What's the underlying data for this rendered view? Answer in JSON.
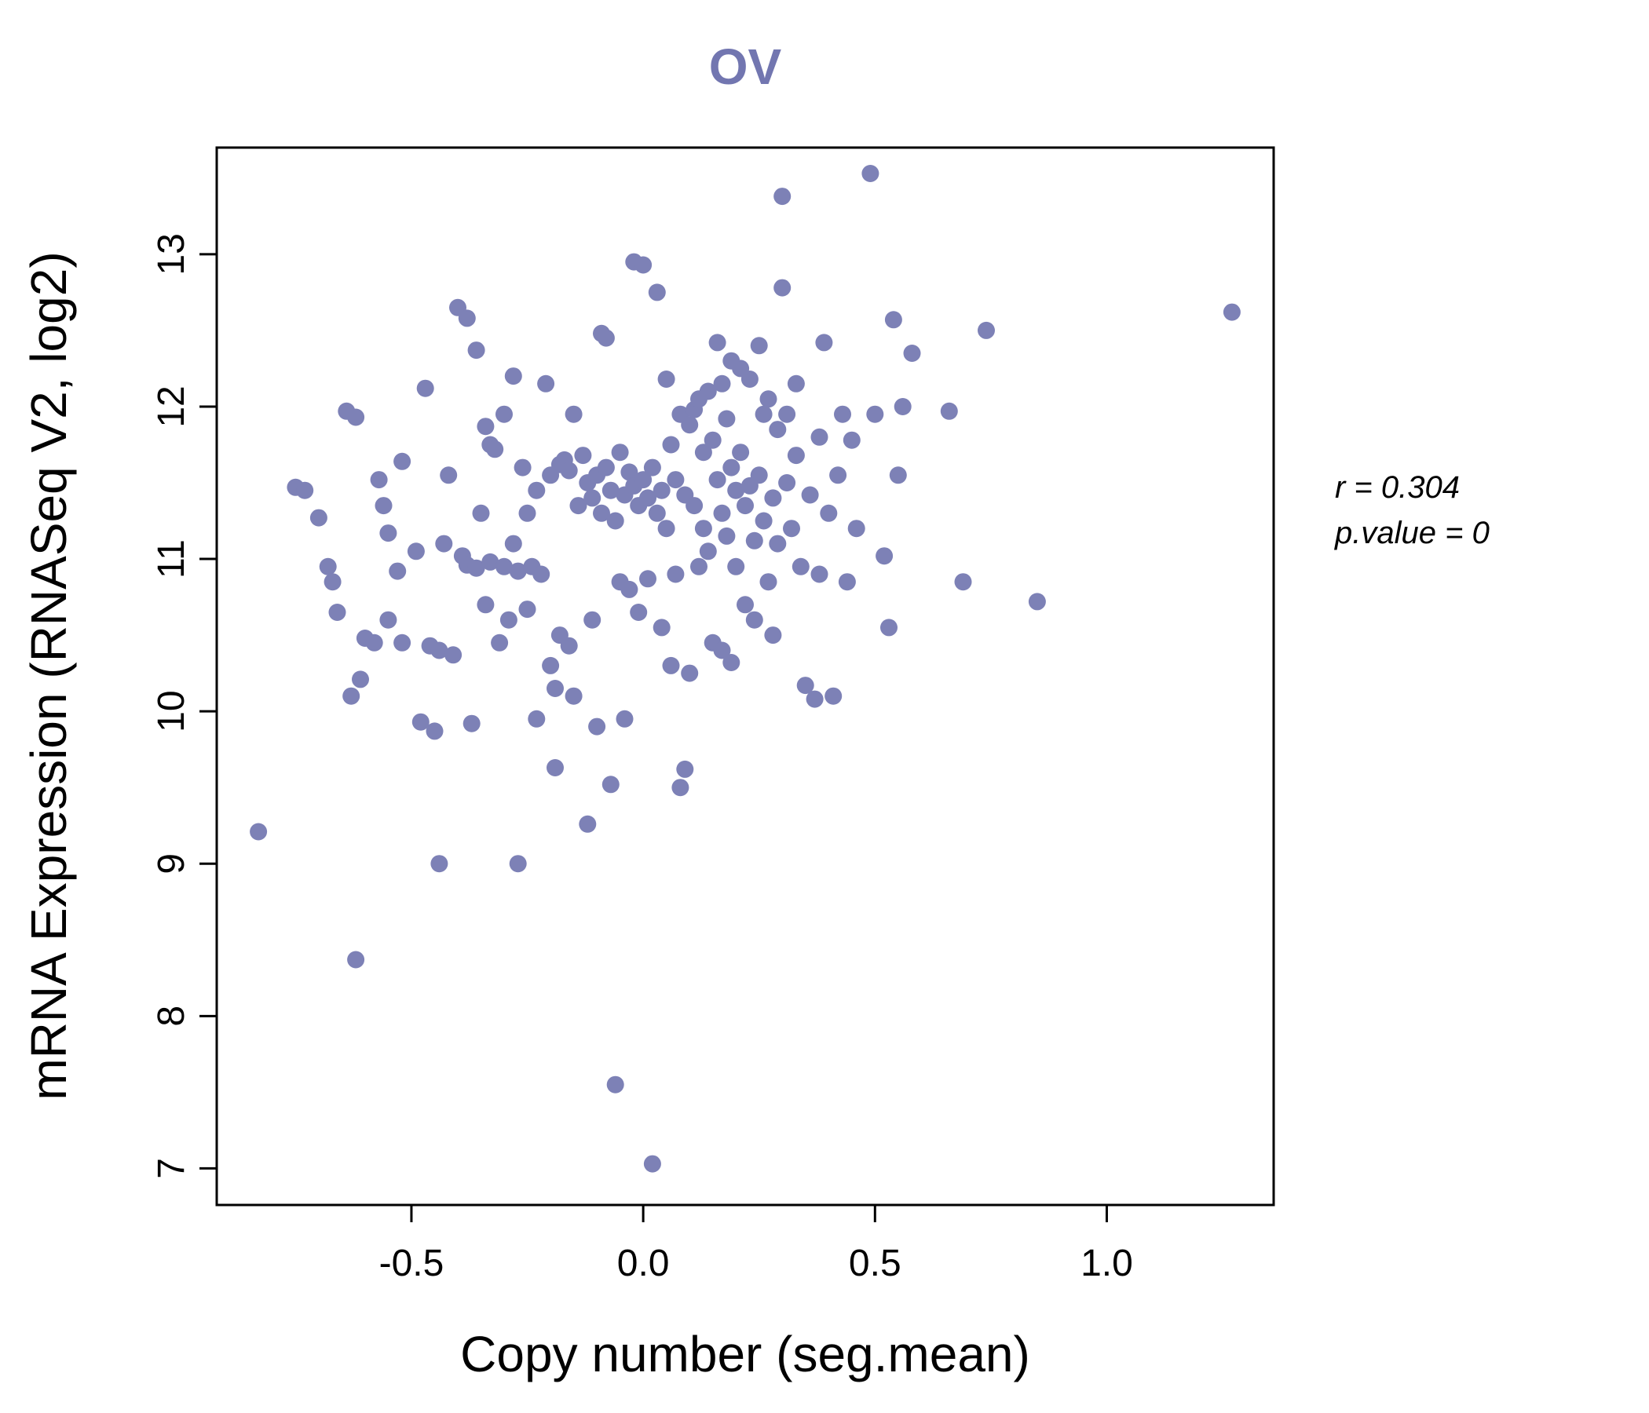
{
  "title": "OV",
  "annotation": {
    "r_line": "r = 0.304",
    "p_line": "p.value = 0"
  },
  "chart_data": {
    "type": "scatter",
    "title": "OV",
    "xlabel": "Copy number (seg.mean)",
    "ylabel": "mRNA Expression (RNASeq V2, log2)",
    "xlim": [
      -0.92,
      1.36
    ],
    "ylim": [
      6.76,
      13.7
    ],
    "x_ticks": [
      -0.5,
      0,
      0.5,
      1
    ],
    "x_tick_labels": [
      "-0.5",
      "0.0",
      "0.5",
      "1.0"
    ],
    "y_ticks": [
      7,
      8,
      9,
      10,
      11,
      12,
      13
    ],
    "y_tick_labels": [
      "7",
      "8",
      "9",
      "10",
      "11",
      "12",
      "13"
    ],
    "grid": false,
    "legend_position": "none",
    "point_color": "#7d81b6",
    "title_color": "#7276b0",
    "correlation": {
      "r": 0.304,
      "p_value": 0
    },
    "points": [
      [
        -0.83,
        9.21
      ],
      [
        -0.75,
        11.47
      ],
      [
        -0.73,
        11.45
      ],
      [
        -0.7,
        11.27
      ],
      [
        -0.68,
        10.95
      ],
      [
        -0.67,
        10.85
      ],
      [
        -0.66,
        10.65
      ],
      [
        -0.64,
        11.97
      ],
      [
        -0.62,
        11.93
      ],
      [
        -0.62,
        8.37
      ],
      [
        -0.63,
        10.1
      ],
      [
        -0.61,
        10.21
      ],
      [
        -0.6,
        10.48
      ],
      [
        -0.58,
        10.45
      ],
      [
        -0.57,
        11.52
      ],
      [
        -0.56,
        11.35
      ],
      [
        -0.55,
        10.6
      ],
      [
        -0.55,
        11.17
      ],
      [
        -0.53,
        10.92
      ],
      [
        -0.52,
        11.64
      ],
      [
        -0.52,
        10.45
      ],
      [
        -0.49,
        11.05
      ],
      [
        -0.48,
        9.93
      ],
      [
        -0.47,
        12.12
      ],
      [
        -0.46,
        10.43
      ],
      [
        -0.45,
        9.87
      ],
      [
        -0.44,
        9.0
      ],
      [
        -0.44,
        10.4
      ],
      [
        -0.43,
        11.1
      ],
      [
        -0.42,
        11.55
      ],
      [
        -0.41,
        10.37
      ],
      [
        -0.4,
        12.65
      ],
      [
        -0.39,
        11.02
      ],
      [
        -0.38,
        12.58
      ],
      [
        -0.38,
        10.96
      ],
      [
        -0.37,
        9.92
      ],
      [
        -0.36,
        12.37
      ],
      [
        -0.36,
        10.94
      ],
      [
        -0.35,
        11.3
      ],
      [
        -0.34,
        11.87
      ],
      [
        -0.34,
        10.7
      ],
      [
        -0.33,
        11.75
      ],
      [
        -0.33,
        10.98
      ],
      [
        -0.32,
        11.72
      ],
      [
        -0.31,
        10.45
      ],
      [
        -0.3,
        11.95
      ],
      [
        -0.3,
        10.95
      ],
      [
        -0.29,
        10.6
      ],
      [
        -0.28,
        11.1
      ],
      [
        -0.28,
        12.2
      ],
      [
        -0.27,
        9.0
      ],
      [
        -0.27,
        10.92
      ],
      [
        -0.26,
        11.6
      ],
      [
        -0.25,
        10.67
      ],
      [
        -0.25,
        11.3
      ],
      [
        -0.24,
        10.95
      ],
      [
        -0.23,
        9.95
      ],
      [
        -0.23,
        11.45
      ],
      [
        -0.22,
        10.9
      ],
      [
        -0.21,
        12.15
      ],
      [
        -0.2,
        10.3
      ],
      [
        -0.2,
        11.55
      ],
      [
        -0.19,
        9.63
      ],
      [
        -0.19,
        10.15
      ],
      [
        -0.18,
        11.62
      ],
      [
        -0.18,
        10.5
      ],
      [
        -0.17,
        11.65
      ],
      [
        -0.16,
        10.43
      ],
      [
        -0.16,
        11.58
      ],
      [
        -0.15,
        11.95
      ],
      [
        -0.15,
        10.1
      ],
      [
        -0.14,
        11.35
      ],
      [
        -0.13,
        11.68
      ],
      [
        -0.12,
        9.26
      ],
      [
        -0.12,
        11.5
      ],
      [
        -0.11,
        10.6
      ],
      [
        -0.11,
        11.4
      ],
      [
        -0.1,
        9.9
      ],
      [
        -0.1,
        11.55
      ],
      [
        -0.09,
        11.3
      ],
      [
        -0.09,
        12.48
      ],
      [
        -0.08,
        12.45
      ],
      [
        -0.08,
        11.6
      ],
      [
        -0.07,
        9.52
      ],
      [
        -0.07,
        11.45
      ],
      [
        -0.06,
        7.55
      ],
      [
        -0.06,
        11.25
      ],
      [
        -0.05,
        11.7
      ],
      [
        -0.05,
        10.85
      ],
      [
        -0.04,
        9.95
      ],
      [
        -0.04,
        11.42
      ],
      [
        -0.03,
        11.57
      ],
      [
        -0.03,
        10.8
      ],
      [
        -0.02,
        11.48
      ],
      [
        -0.02,
        12.95
      ],
      [
        -0.01,
        11.35
      ],
      [
        -0.01,
        10.65
      ],
      [
        0.0,
        12.93
      ],
      [
        0.0,
        11.52
      ],
      [
        0.01,
        11.4
      ],
      [
        0.01,
        10.87
      ],
      [
        0.02,
        7.03
      ],
      [
        0.02,
        11.6
      ],
      [
        0.03,
        12.75
      ],
      [
        0.03,
        11.3
      ],
      [
        0.04,
        11.45
      ],
      [
        0.04,
        10.55
      ],
      [
        0.05,
        12.18
      ],
      [
        0.05,
        11.2
      ],
      [
        0.06,
        11.75
      ],
      [
        0.06,
        10.3
      ],
      [
        0.07,
        11.52
      ],
      [
        0.07,
        10.9
      ],
      [
        0.08,
        9.5
      ],
      [
        0.08,
        11.95
      ],
      [
        0.09,
        9.62
      ],
      [
        0.09,
        11.42
      ],
      [
        0.1,
        11.88
      ],
      [
        0.1,
        10.25
      ],
      [
        0.11,
        11.98
      ],
      [
        0.11,
        11.35
      ],
      [
        0.12,
        12.05
      ],
      [
        0.12,
        10.95
      ],
      [
        0.13,
        11.7
      ],
      [
        0.13,
        11.2
      ],
      [
        0.14,
        12.1
      ],
      [
        0.14,
        11.05
      ],
      [
        0.15,
        11.78
      ],
      [
        0.15,
        10.45
      ],
      [
        0.16,
        12.42
      ],
      [
        0.16,
        11.52
      ],
      [
        0.17,
        12.15
      ],
      [
        0.17,
        11.3
      ],
      [
        0.17,
        10.4
      ],
      [
        0.18,
        11.92
      ],
      [
        0.18,
        11.15
      ],
      [
        0.19,
        12.3
      ],
      [
        0.19,
        11.6
      ],
      [
        0.19,
        10.32
      ],
      [
        0.2,
        11.45
      ],
      [
        0.2,
        10.95
      ],
      [
        0.21,
        12.25
      ],
      [
        0.21,
        11.7
      ],
      [
        0.22,
        11.35
      ],
      [
        0.22,
        10.7
      ],
      [
        0.23,
        12.18
      ],
      [
        0.23,
        11.48
      ],
      [
        0.24,
        11.12
      ],
      [
        0.24,
        10.6
      ],
      [
        0.25,
        12.4
      ],
      [
        0.25,
        11.55
      ],
      [
        0.26,
        11.95
      ],
      [
        0.26,
        11.25
      ],
      [
        0.27,
        12.05
      ],
      [
        0.27,
        10.85
      ],
      [
        0.28,
        11.4
      ],
      [
        0.28,
        10.5
      ],
      [
        0.29,
        11.85
      ],
      [
        0.29,
        11.1
      ],
      [
        0.3,
        13.38
      ],
      [
        0.3,
        12.78
      ],
      [
        0.31,
        11.95
      ],
      [
        0.31,
        11.5
      ],
      [
        0.32,
        11.2
      ],
      [
        0.33,
        12.15
      ],
      [
        0.33,
        11.68
      ],
      [
        0.34,
        10.95
      ],
      [
        0.35,
        10.17
      ],
      [
        0.36,
        11.42
      ],
      [
        0.37,
        10.08
      ],
      [
        0.38,
        11.8
      ],
      [
        0.38,
        10.9
      ],
      [
        0.39,
        12.42
      ],
      [
        0.4,
        11.3
      ],
      [
        0.41,
        10.1
      ],
      [
        0.42,
        11.55
      ],
      [
        0.43,
        11.95
      ],
      [
        0.44,
        10.85
      ],
      [
        0.45,
        11.78
      ],
      [
        0.46,
        11.2
      ],
      [
        0.49,
        13.53
      ],
      [
        0.5,
        11.95
      ],
      [
        0.52,
        11.02
      ],
      [
        0.53,
        10.55
      ],
      [
        0.54,
        12.57
      ],
      [
        0.55,
        11.55
      ],
      [
        0.56,
        12.0
      ],
      [
        0.58,
        12.35
      ],
      [
        0.66,
        11.97
      ],
      [
        0.69,
        10.85
      ],
      [
        0.74,
        12.5
      ],
      [
        0.85,
        10.72
      ],
      [
        1.27,
        12.62
      ]
    ]
  }
}
